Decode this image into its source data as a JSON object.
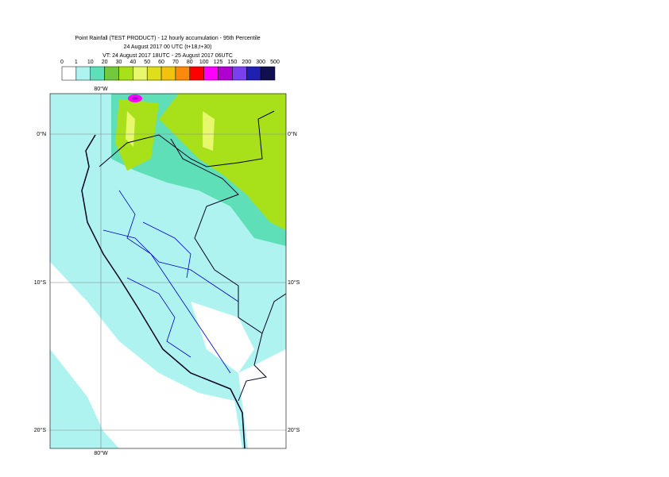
{
  "header": {
    "title": "Point Rainfall (TEST PRODUCT) - 12 hourly accumulation - 95th Percentile",
    "subtitle": "24 August 2017 00 UTC (t+18,t+30)",
    "valid_time": "VT: 24 August 2017 18UTC - 25 August 2017 06UTC"
  },
  "legend": {
    "thresholds": [
      0,
      1,
      10,
      20,
      30,
      40,
      50,
      60,
      70,
      80,
      100,
      125,
      150,
      200,
      300,
      500
    ],
    "colors": [
      "#ffffff",
      "#aef3f0",
      "#5fdfb8",
      "#74c83c",
      "#a8e01a",
      "#e8f86c",
      "#dede1c",
      "#f2c20f",
      "#f98a0e",
      "#ff0000",
      "#ff00ff",
      "#b000d0",
      "#7a40f0",
      "#2020b0",
      "#101050"
    ]
  },
  "map": {
    "lon_labels": [
      "80°W",
      "80°W"
    ],
    "lat_labels_left": [
      "0°N",
      "10°S",
      "20°S"
    ],
    "lat_labels_right": [
      "0°N",
      "10°S",
      "20°S"
    ]
  }
}
